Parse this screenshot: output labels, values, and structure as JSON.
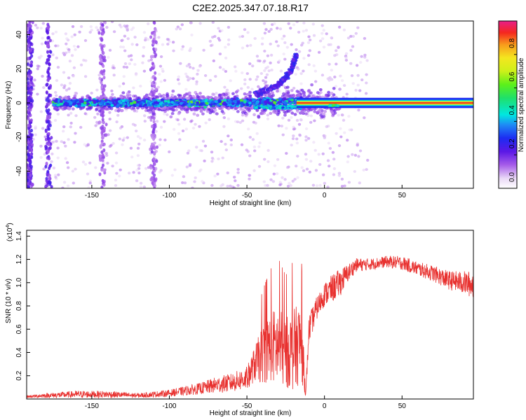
{
  "chart_data": [
    {
      "type": "heatmap",
      "title": "C2E2.2025.347.07.18.R17",
      "xlabel": "Height of straight line (km)",
      "ylabel": "Frequency (Hz)",
      "xlim": [
        -192,
        96
      ],
      "ylim": [
        -50,
        48
      ],
      "x_ticks": [
        -150,
        -100,
        -50,
        0,
        50
      ],
      "y_ticks": [
        -40,
        -20,
        0,
        20,
        40
      ],
      "colorbar": {
        "label": "Normalized spectral amplitude",
        "range": [
          0,
          1
        ],
        "ticks": [
          0.0,
          0.2,
          0.4,
          0.6,
          0.8
        ],
        "tick_labels": [
          "0.0",
          "0.2",
          "0.4",
          "0.6",
          "0.8"
        ],
        "colormap": "rainbow (white-purple-blue-cyan-green-yellow-red-magenta)"
      },
      "features": {
        "main_band_center_hz": 0,
        "noisy_band_x_range": [
          -175,
          -15
        ],
        "clean_line_x_range": [
          -18,
          96
        ],
        "upward_branch": {
          "x": [
            -45,
            -30,
            -22,
            -18
          ],
          "y": [
            5,
            10,
            18,
            28
          ]
        },
        "vertical_streaks_x": [
          -190,
          -178,
          -143,
          -110
        ]
      }
    },
    {
      "type": "line",
      "xlabel": "Height of straight line (km)",
      "ylabel": "SNR (10 * v/v)",
      "y_multiplier_label": "(x10",
      "y_multiplier_exp": "4",
      "xlim": [
        -192,
        96
      ],
      "ylim": [
        0,
        1.45
      ],
      "x_ticks": [
        -150,
        -100,
        -50,
        0,
        50
      ],
      "y_ticks": [
        0.2,
        0.4,
        0.6,
        0.8,
        1.0,
        1.2,
        1.4
      ],
      "y_tick_labels": [
        "0.2",
        "0.4",
        "0.6",
        "0.8",
        "1.0",
        "1.2",
        "1.4"
      ],
      "series": [
        {
          "name": "SNR",
          "color": "#e8312f",
          "envelope_x": [
            -192,
            -180,
            -160,
            -140,
            -120,
            -100,
            -90,
            -80,
            -70,
            -60,
            -50,
            -45,
            -40,
            -35,
            -30,
            -25,
            -20,
            -15,
            -12,
            -10,
            -5,
            0,
            5,
            10,
            15,
            20,
            30,
            40,
            50,
            60,
            70,
            80,
            90,
            96
          ],
          "envelope_mean": [
            0.02,
            0.03,
            0.04,
            0.04,
            0.03,
            0.05,
            0.07,
            0.09,
            0.12,
            0.14,
            0.18,
            0.3,
            0.38,
            0.45,
            0.45,
            0.4,
            0.42,
            0.5,
            0.05,
            0.6,
            0.78,
            0.9,
            0.95,
            1.0,
            1.08,
            1.15,
            1.16,
            1.18,
            1.17,
            1.12,
            1.08,
            1.02,
            1.0,
            0.98
          ],
          "envelope_amp": [
            0.01,
            0.02,
            0.03,
            0.03,
            0.02,
            0.03,
            0.04,
            0.05,
            0.07,
            0.08,
            0.1,
            0.15,
            0.25,
            0.3,
            0.35,
            0.3,
            0.35,
            0.35,
            0.03,
            0.12,
            0.1,
            0.1,
            0.12,
            0.12,
            0.08,
            0.06,
            0.05,
            0.05,
            0.06,
            0.06,
            0.07,
            0.08,
            0.1,
            0.12
          ]
        }
      ]
    }
  ]
}
